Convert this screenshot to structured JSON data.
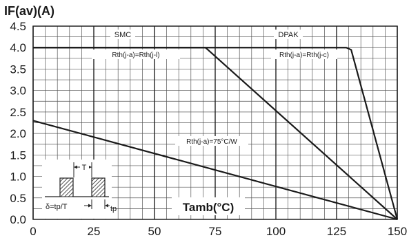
{
  "chart_data": {
    "type": "line",
    "ylabel": "IF(av)(A)",
    "xlabel": "Tamb(°C)",
    "xlim": [
      0,
      150
    ],
    "ylim": [
      0,
      4.5
    ],
    "grid": true,
    "x_ticks": [
      "0",
      "25",
      "50",
      "75",
      "100",
      "125",
      "150"
    ],
    "y_ticks": [
      "0.0",
      "0.5",
      "1.0",
      "1.5",
      "2.0",
      "2.5",
      "3.0",
      "3.5",
      "4.0",
      "4.5"
    ],
    "series": [
      {
        "name": "",
        "x": [
          0,
          150
        ],
        "y": [
          2.3,
          0.0
        ]
      },
      {
        "name": "",
        "x": [
          0,
          71,
          150
        ],
        "y": [
          4.0,
          4.0,
          0.0
        ]
      },
      {
        "name": "",
        "x": [
          0,
          129,
          131,
          150
        ],
        "y": [
          4.0,
          4.0,
          3.95,
          0.0
        ]
      }
    ],
    "annotations": {
      "smc": "SMC",
      "dpak": "DPAK",
      "rth_smc": "Rth(j-a)=Rth(j-l)",
      "rth_dpak": "Rth(j-a)=Rth(j-c)",
      "rth_free": "Rth(j-a)=75°C/W"
    },
    "inset": {
      "period_label": "T",
      "duty_label": "δ=tp/T",
      "pulse_label": "tp"
    }
  }
}
